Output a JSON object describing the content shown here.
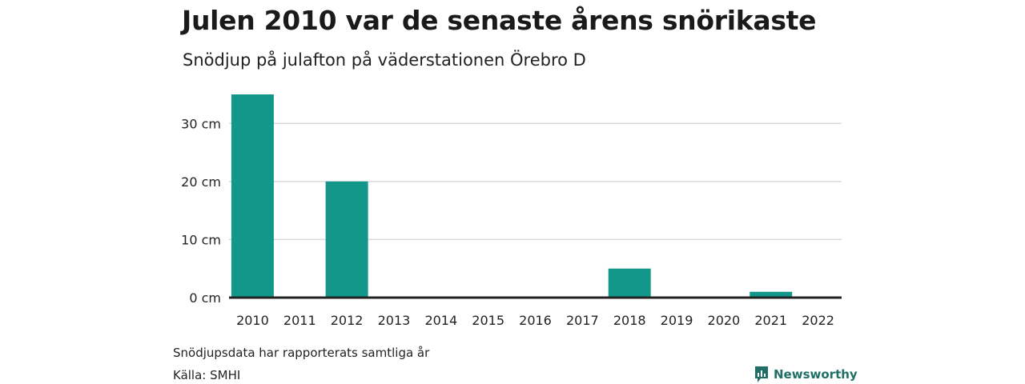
{
  "header": {
    "title": "Julen 2010 var de senaste årens snörikaste",
    "subtitle": "Snödjup på julafton på väderstationen Örebro D"
  },
  "footer": {
    "note": "Snödjupsdata har rapporterats samtliga år",
    "source": "Källa: SMHI",
    "brand": "Newsworthy"
  },
  "colors": {
    "bar": "#13978a",
    "grid": "#d9d9d9",
    "axis": "#222222",
    "brand": "#1f6f66"
  },
  "icons": {
    "brand": "chart-bubble-icon"
  },
  "chart_data": {
    "type": "bar",
    "title": "Julen 2010 var de senaste årens snörikaste",
    "subtitle": "Snödjup på julafton på väderstationen Örebro D",
    "categories": [
      "2010",
      "2011",
      "2012",
      "2013",
      "2014",
      "2015",
      "2016",
      "2017",
      "2018",
      "2019",
      "2020",
      "2021",
      "2022"
    ],
    "values": [
      35,
      0,
      20,
      0,
      0,
      0,
      0,
      0,
      5,
      0,
      0,
      1,
      0
    ],
    "unit": "cm",
    "y_ticks": [
      0,
      10,
      20,
      30
    ],
    "y_tick_labels": [
      "0 cm",
      "10 cm",
      "20 cm",
      "30 cm"
    ],
    "ylim": [
      0,
      35
    ],
    "grid": true,
    "legend": "none"
  }
}
